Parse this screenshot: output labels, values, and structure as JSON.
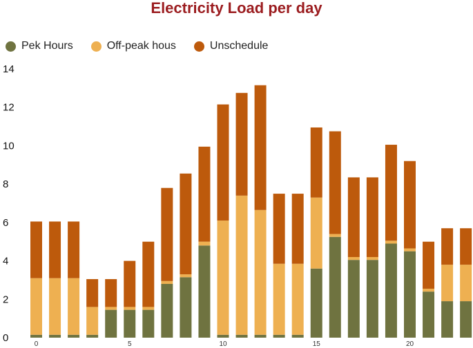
{
  "chart_data": {
    "type": "bar",
    "stacked": true,
    "title": "Electricity Load per day",
    "xlabel": "",
    "ylabel": "",
    "ylim": [
      0,
      14
    ],
    "y_ticks": [
      "0",
      "2",
      "4",
      "6",
      "8",
      "10",
      "12",
      "14"
    ],
    "x_ticks": [
      "0",
      "5",
      "10",
      "15",
      "20"
    ],
    "x_tick_values": [
      0,
      5,
      10,
      15,
      20
    ],
    "legend_position": "top-left",
    "categories": [
      0,
      1,
      2,
      3,
      4,
      5,
      6,
      7,
      8,
      9,
      10,
      11,
      12,
      13,
      14,
      15,
      16,
      17,
      18,
      19,
      20,
      21,
      22,
      23
    ],
    "series": [
      {
        "name": "Pek Hours",
        "color": "#6f7340",
        "values": [
          0.15,
          0.15,
          0.15,
          0.15,
          1.45,
          1.45,
          1.45,
          2.8,
          3.15,
          4.8,
          0.15,
          0.15,
          0.15,
          0.15,
          0.15,
          3.6,
          5.25,
          4.05,
          4.05,
          4.9,
          4.5,
          2.4,
          1.9,
          1.9
        ]
      },
      {
        "name": "Off-peak hous",
        "color": "#eeb051",
        "values": [
          2.95,
          2.95,
          2.95,
          1.45,
          0.15,
          0.15,
          0.15,
          0.15,
          0.15,
          0.2,
          5.95,
          7.25,
          6.5,
          3.7,
          3.7,
          3.7,
          0.15,
          0.15,
          0.15,
          0.15,
          0.15,
          0.15,
          1.9,
          1.9
        ]
      },
      {
        "name": "Unschedule",
        "color": "#bd5a0c",
        "values": [
          2.95,
          2.95,
          2.95,
          1.45,
          1.45,
          2.4,
          3.4,
          4.85,
          5.25,
          4.95,
          6.05,
          5.35,
          6.5,
          3.65,
          3.65,
          3.65,
          5.35,
          4.15,
          4.15,
          5.0,
          4.55,
          2.45,
          1.9,
          1.9
        ]
      }
    ]
  }
}
